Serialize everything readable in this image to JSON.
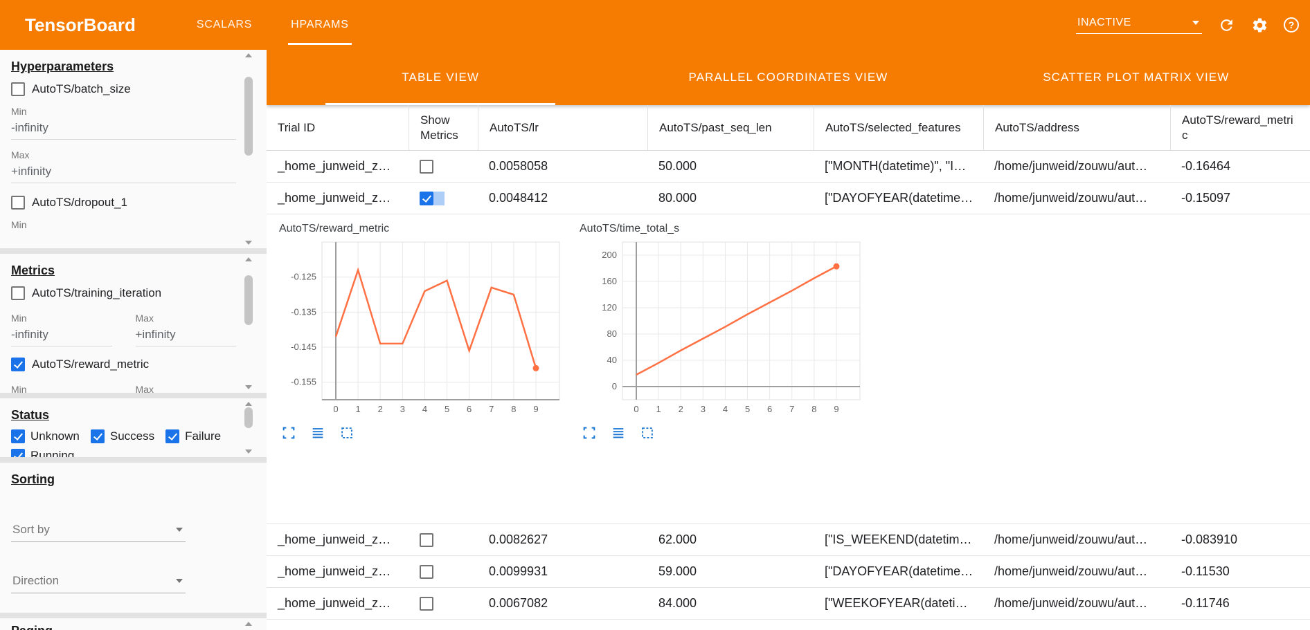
{
  "colors": {
    "primary_orange": "#f57c00",
    "accent_blue": "#1a73e8",
    "chart_line": "#ff7043"
  },
  "topbar": {
    "title": "TensorBoard",
    "tabs": [
      {
        "label": "SCALARS",
        "active": false
      },
      {
        "label": "HPARAMS",
        "active": true
      }
    ],
    "run_selector": {
      "value": "INACTIVE"
    },
    "icons": [
      "reload-icon",
      "settings-icon",
      "help-icon"
    ]
  },
  "sidebar": {
    "hyperparameters": {
      "title": "Hyperparameters",
      "items": [
        {
          "label": "AutoTS/batch_size",
          "checked": false,
          "min_label": "Min",
          "min_value": "-infinity",
          "max_label": "Max",
          "max_value": "+infinity"
        },
        {
          "label": "AutoTS/dropout_1",
          "checked": false,
          "min_label": "Min"
        }
      ]
    },
    "metrics": {
      "title": "Metrics",
      "items": [
        {
          "label": "AutoTS/training_iteration",
          "checked": false,
          "min_label": "Min",
          "max_label": "Max",
          "min_value": "-infinity",
          "max_value": "+infinity"
        },
        {
          "label": "AutoTS/reward_metric",
          "checked": true,
          "min_label": "Min",
          "max_label": "Max"
        }
      ]
    },
    "status": {
      "title": "Status",
      "items": [
        {
          "label": "Unknown",
          "checked": true
        },
        {
          "label": "Success",
          "checked": true
        },
        {
          "label": "Failure",
          "checked": true
        },
        {
          "label": "Running",
          "checked": true
        }
      ]
    },
    "sorting": {
      "title": "Sorting",
      "sort_by": {
        "placeholder": "Sort by"
      },
      "direction": {
        "placeholder": "Direction"
      }
    },
    "paging": {
      "title": "Paging"
    }
  },
  "main": {
    "view_tabs": [
      {
        "label": "TABLE VIEW",
        "active": true
      },
      {
        "label": "PARALLEL COORDINATES VIEW",
        "active": false
      },
      {
        "label": "SCATTER PLOT MATRIX VIEW",
        "active": false
      }
    ],
    "table": {
      "columns": [
        "Trial ID",
        "Show Metrics",
        "AutoTS/lr",
        "AutoTS/past_seq_len",
        "AutoTS/selected_features",
        "AutoTS/address",
        "AutoTS/reward_metric"
      ],
      "rows": [
        {
          "trial_id": "_home_junweid_z…",
          "show_metrics": false,
          "ripple": false,
          "lr": "0.0058058",
          "past_seq_len": "50.000",
          "selected_features": "[\"MONTH(datetime)\", \"I…",
          "address": "/home/junweid/zouwu/aut…",
          "reward_metric": "-0.16464"
        },
        {
          "trial_id": "_home_junweid_z…",
          "show_metrics": true,
          "ripple": true,
          "lr": "0.0048412",
          "past_seq_len": "80.000",
          "selected_features": "[\"DAYOFYEAR(datetime…",
          "address": "/home/junweid/zouwu/aut…",
          "reward_metric": "-0.15097"
        },
        {
          "trial_id": "_home_junweid_z…",
          "show_metrics": false,
          "ripple": false,
          "lr": "0.0082627",
          "past_seq_len": "62.000",
          "selected_features": "[\"IS_WEEKEND(datetim…",
          "address": "/home/junweid/zouwu/aut…",
          "reward_metric": "-0.083910"
        },
        {
          "trial_id": "_home_junweid_z…",
          "show_metrics": false,
          "ripple": false,
          "lr": "0.0099931",
          "past_seq_len": "59.000",
          "selected_features": "[\"DAYOFYEAR(datetime…",
          "address": "/home/junweid/zouwu/aut…",
          "reward_metric": "-0.11530"
        },
        {
          "trial_id": "_home_junweid_z…",
          "show_metrics": false,
          "ripple": false,
          "lr": "0.0067082",
          "past_seq_len": "84.000",
          "selected_features": "[\"WEEKOFYEAR(dateti…",
          "address": "/home/junweid/zouwu/aut…",
          "reward_metric": "-0.11746"
        }
      ]
    },
    "chart_tool_icons": [
      "fullscreen-icon",
      "log-lines-icon",
      "marquee-select-icon"
    ]
  },
  "chart_data": [
    {
      "type": "line",
      "title": "AutoTS/reward_metric",
      "x": [
        0,
        1,
        2,
        3,
        4,
        5,
        6,
        7,
        8,
        9
      ],
      "values": [
        -0.142,
        -0.123,
        -0.144,
        -0.144,
        -0.129,
        -0.126,
        -0.146,
        -0.128,
        -0.13,
        -0.151
      ],
      "ylim": [
        -0.16,
        -0.115
      ],
      "yticks": [
        -0.125,
        -0.135,
        -0.145,
        -0.155
      ],
      "xticks": [
        0,
        1,
        2,
        3,
        4,
        5,
        6,
        7,
        8,
        9
      ],
      "xlabel": "",
      "ylabel": "",
      "grid": true,
      "legend": "none",
      "line_color": "#ff7043",
      "end_marker": true
    },
    {
      "type": "line",
      "title": "AutoTS/time_total_s",
      "x": [
        0,
        1,
        2,
        3,
        4,
        5,
        6,
        7,
        8,
        9
      ],
      "values": [
        18,
        36,
        55,
        73,
        91,
        110,
        128,
        146,
        165,
        183
      ],
      "ylim": [
        -20,
        220
      ],
      "yticks": [
        0,
        40,
        80,
        120,
        160,
        200
      ],
      "xticks": [
        0,
        1,
        2,
        3,
        4,
        5,
        6,
        7,
        8,
        9
      ],
      "xlabel": "",
      "ylabel": "",
      "grid": true,
      "legend": "none",
      "line_color": "#ff7043",
      "end_marker": true
    }
  ]
}
